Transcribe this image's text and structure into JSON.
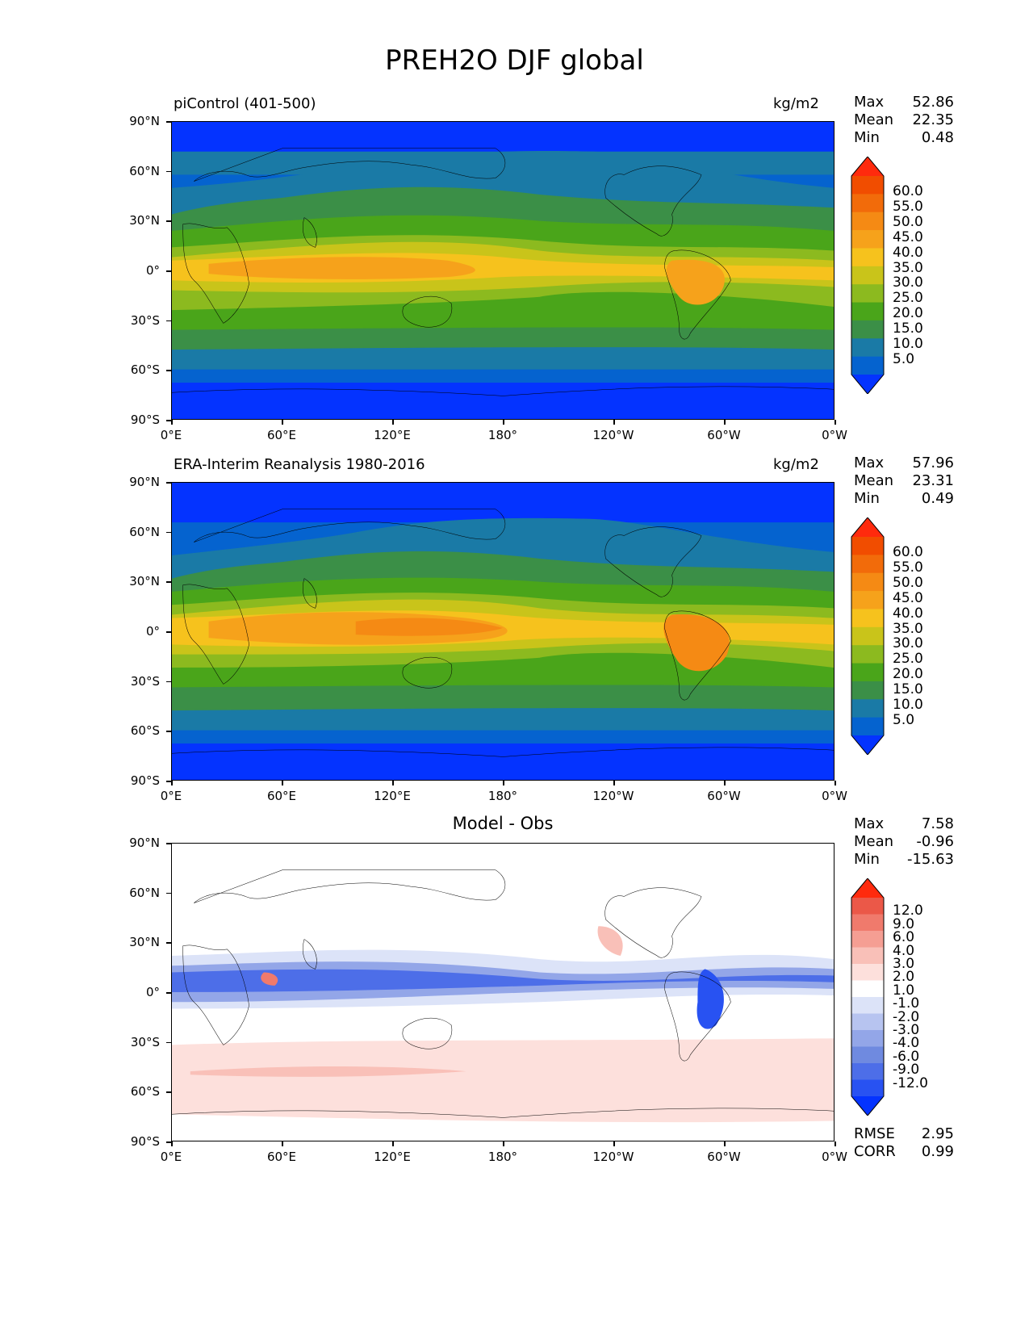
{
  "title": "PREH2O DJF global",
  "axes": {
    "lat_ticks": [
      "90°N",
      "60°N",
      "30°N",
      "0°",
      "30°S",
      "60°S",
      "90°S"
    ],
    "lon_ticks": [
      "0°E",
      "60°E",
      "120°E",
      "180°",
      "120°W",
      "60°W",
      "0°W"
    ]
  },
  "colors": {
    "abs_levels": [
      "#0433ff",
      "#0563cf",
      "#1a7aa6",
      "#3b8f47",
      "#4aa51a",
      "#8cba1f",
      "#c9c41a",
      "#f6c21d",
      "#f6a21b",
      "#f58a14",
      "#f26b0a",
      "#f14d00",
      "#ff2a0d"
    ],
    "diff_levels": [
      "#0433ff",
      "#2852f2",
      "#4d6ee8",
      "#6f8ae0",
      "#93a6e8",
      "#b7c4f0",
      "#dce3f8",
      "#ffffff",
      "#fde0dc",
      "#f9c0b8",
      "#f59e93",
      "#f07a6c",
      "#eb5848",
      "#ff2a0d"
    ],
    "coast": "#000000"
  },
  "chart_data": [
    {
      "type": "heatmap",
      "panel": "top",
      "label": "piControl (401-500)",
      "units": "kg/m2",
      "stats": {
        "max_label": "Max",
        "max": "52.86",
        "mean_label": "Mean",
        "mean": "22.35",
        "min_label": "Min",
        "min": "0.48"
      },
      "colorbar_ticks": [
        "60.0",
        "55.0",
        "50.0",
        "45.0",
        "40.0",
        "35.0",
        "30.0",
        "25.0",
        "20.0",
        "15.0",
        "10.0",
        "5.0"
      ],
      "xlim": [
        0,
        360
      ],
      "ylim": [
        -90,
        90
      ]
    },
    {
      "type": "heatmap",
      "panel": "middle",
      "label": "ERA-Interim Reanalysis 1980-2016",
      "units": "kg/m2",
      "stats": {
        "max_label": "Max",
        "max": "57.96",
        "mean_label": "Mean",
        "mean": "23.31",
        "min_label": "Min",
        "min": "0.49"
      },
      "colorbar_ticks": [
        "60.0",
        "55.0",
        "50.0",
        "45.0",
        "40.0",
        "35.0",
        "30.0",
        "25.0",
        "20.0",
        "15.0",
        "10.0",
        "5.0"
      ],
      "xlim": [
        0,
        360
      ],
      "ylim": [
        -90,
        90
      ]
    },
    {
      "type": "heatmap",
      "panel": "bottom",
      "label": "Model - Obs",
      "stats": {
        "max_label": "Max",
        "max": "7.58",
        "mean_label": "Mean",
        "mean": "-0.96",
        "min_label": "Min",
        "min": "-15.63"
      },
      "metrics": {
        "rmse_label": "RMSE",
        "rmse": "2.95",
        "corr_label": "CORR",
        "corr": "0.99"
      },
      "colorbar_ticks": [
        "12.0",
        "9.0",
        "6.0",
        "4.0",
        "3.0",
        "2.0",
        "1.0",
        "-1.0",
        "-2.0",
        "-3.0",
        "-4.0",
        "-6.0",
        "-9.0",
        "-12.0"
      ],
      "xlim": [
        0,
        360
      ],
      "ylim": [
        -90,
        90
      ]
    }
  ]
}
